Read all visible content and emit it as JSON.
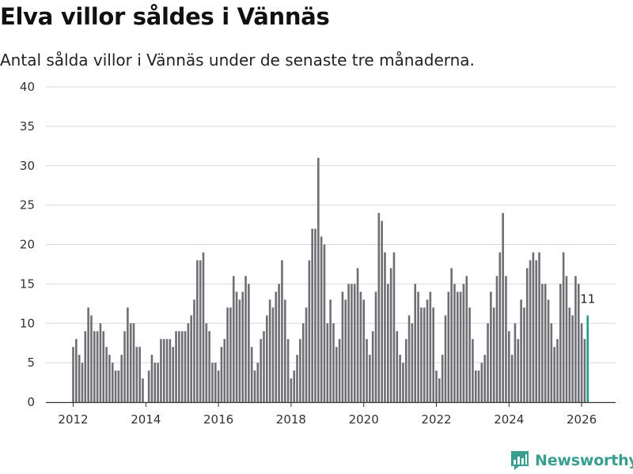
{
  "header": {
    "title": "Elva villor såldes i Vännäs",
    "subtitle": "Antal sålda villor i Vännäs under de senaste tre månaderna."
  },
  "brand": {
    "name": "Newsworthy",
    "icon": "newsworthy-logo-icon"
  },
  "colors": {
    "bar": "#6f6e72",
    "highlight": "#1f9c8e",
    "grid": "#d9d9d9",
    "axis": "#333333"
  },
  "chart_data": {
    "type": "bar",
    "title": "Elva villor såldes i Vännäs",
    "subtitle": "Antal sålda villor i Vännäs under de senaste tre månaderna.",
    "xlabel": "",
    "ylabel": "",
    "ylim": [
      0,
      40
    ],
    "yticks": [
      0,
      5,
      10,
      15,
      20,
      25,
      30,
      35,
      40
    ],
    "xticks": [
      2012,
      2014,
      2016,
      2018,
      2020,
      2022,
      2024,
      2026
    ],
    "x_start": "2012-01",
    "x_step": "month",
    "grid": true,
    "last_label": "11",
    "values": [
      7,
      8,
      6,
      5,
      9,
      12,
      11,
      9,
      9,
      10,
      9,
      7,
      6,
      5,
      4,
      4,
      6,
      9,
      12,
      10,
      10,
      7,
      7,
      3,
      0,
      4,
      6,
      5,
      5,
      8,
      8,
      8,
      8,
      7,
      9,
      9,
      9,
      9,
      10,
      11,
      13,
      18,
      18,
      19,
      10,
      9,
      5,
      5,
      4,
      7,
      8,
      12,
      12,
      16,
      14,
      13,
      14,
      16,
      15,
      7,
      4,
      5,
      8,
      9,
      11,
      13,
      12,
      14,
      15,
      18,
      13,
      8,
      3,
      4,
      6,
      8,
      10,
      12,
      18,
      22,
      22,
      31,
      21,
      20,
      10,
      13,
      10,
      7,
      8,
      14,
      13,
      15,
      15,
      15,
      17,
      14,
      13,
      8,
      6,
      9,
      14,
      24,
      23,
      19,
      15,
      17,
      19,
      9,
      6,
      5,
      8,
      11,
      10,
      15,
      14,
      12,
      12,
      13,
      14,
      12,
      4,
      3,
      6,
      11,
      14,
      17,
      15,
      14,
      14,
      15,
      16,
      12,
      8,
      4,
      4,
      5,
      6,
      10,
      14,
      12,
      16,
      19,
      24,
      16,
      9,
      6,
      10,
      8,
      13,
      12,
      17,
      18,
      19,
      18,
      19,
      15,
      15,
      13,
      10,
      7,
      8,
      15,
      19,
      16,
      12,
      11,
      16,
      15,
      10,
      8,
      11
    ]
  }
}
